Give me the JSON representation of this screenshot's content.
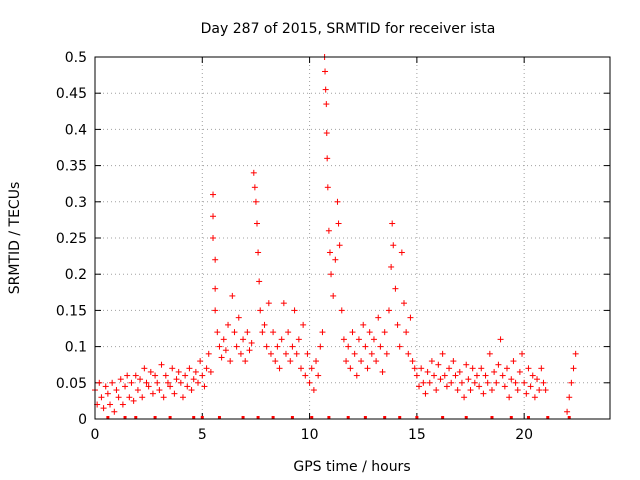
{
  "chart_data": {
    "type": "scatter",
    "title": "Day 287 of 2015, SRMTID for receiver ista",
    "xlabel": "GPS time / hours",
    "ylabel": "SRMTID / TECUs",
    "xlim": [
      0,
      24
    ],
    "ylim": [
      0,
      0.5
    ],
    "x_ticks": [
      "0",
      "5",
      "10",
      "15",
      "20"
    ],
    "y_ticks": [
      "0",
      "0.05",
      "0.1",
      "0.15",
      "0.2",
      "0.25",
      "0.3",
      "0.35",
      "0.4",
      "0.45",
      "0.5"
    ],
    "grid": true,
    "legend": "none",
    "marker": "plus",
    "series_color": "#ff0000",
    "series": [
      {
        "values": [
          [
            0.0,
            0.04
          ],
          [
            0.1,
            0.02
          ],
          [
            0.2,
            0.05
          ],
          [
            0.3,
            0.03
          ],
          [
            0.4,
            0.015
          ],
          [
            0.5,
            0.045
          ],
          [
            0.6,
            0.035
          ],
          [
            0.7,
            0.02
          ],
          [
            0.8,
            0.05
          ],
          [
            0.9,
            0.01
          ],
          [
            1.0,
            0.04
          ],
          [
            1.1,
            0.03
          ],
          [
            1.2,
            0.055
          ],
          [
            1.3,
            0.02
          ],
          [
            1.4,
            0.045
          ],
          [
            1.5,
            0.06
          ],
          [
            1.6,
            0.03
          ],
          [
            1.7,
            0.05
          ],
          [
            1.8,
            0.025
          ],
          [
            1.9,
            0.06
          ],
          [
            2.0,
            0.04
          ],
          [
            2.1,
            0.055
          ],
          [
            2.2,
            0.03
          ],
          [
            2.3,
            0.07
          ],
          [
            2.4,
            0.05
          ],
          [
            2.5,
            0.045
          ],
          [
            2.6,
            0.065
          ],
          [
            2.7,
            0.035
          ],
          [
            2.8,
            0.06
          ],
          [
            2.9,
            0.05
          ],
          [
            3.0,
            0.04
          ],
          [
            3.1,
            0.075
          ],
          [
            3.2,
            0.03
          ],
          [
            3.3,
            0.06
          ],
          [
            3.4,
            0.05
          ],
          [
            3.5,
            0.045
          ],
          [
            3.6,
            0.07
          ],
          [
            3.7,
            0.035
          ],
          [
            3.8,
            0.055
          ],
          [
            3.9,
            0.065
          ],
          [
            4.0,
            0.05
          ],
          [
            4.1,
            0.03
          ],
          [
            4.2,
            0.06
          ],
          [
            4.3,
            0.045
          ],
          [
            4.4,
            0.07
          ],
          [
            4.5,
            0.04
          ],
          [
            4.6,
            0.055
          ],
          [
            4.7,
            0.065
          ],
          [
            4.8,
            0.05
          ],
          [
            4.9,
            0.08
          ],
          [
            5.0,
            0.06
          ],
          [
            5.1,
            0.045
          ],
          [
            5.2,
            0.07
          ],
          [
            5.3,
            0.09
          ],
          [
            5.4,
            0.065
          ],
          [
            5.5,
            0.31
          ],
          [
            5.5,
            0.28
          ],
          [
            5.5,
            0.25
          ],
          [
            5.6,
            0.22
          ],
          [
            5.6,
            0.18
          ],
          [
            5.6,
            0.15
          ],
          [
            5.7,
            0.12
          ],
          [
            5.8,
            0.1
          ],
          [
            5.9,
            0.085
          ],
          [
            6.0,
            0.11
          ],
          [
            6.1,
            0.095
          ],
          [
            6.2,
            0.13
          ],
          [
            6.3,
            0.08
          ],
          [
            6.4,
            0.17
          ],
          [
            6.5,
            0.12
          ],
          [
            6.6,
            0.1
          ],
          [
            6.7,
            0.14
          ],
          [
            6.8,
            0.09
          ],
          [
            6.9,
            0.11
          ],
          [
            7.0,
            0.08
          ],
          [
            7.1,
            0.12
          ],
          [
            7.2,
            0.095
          ],
          [
            7.3,
            0.105
          ],
          [
            7.4,
            0.34
          ],
          [
            7.45,
            0.32
          ],
          [
            7.5,
            0.3
          ],
          [
            7.55,
            0.27
          ],
          [
            7.6,
            0.23
          ],
          [
            7.65,
            0.19
          ],
          [
            7.7,
            0.15
          ],
          [
            7.8,
            0.12
          ],
          [
            7.9,
            0.13
          ],
          [
            8.0,
            0.1
          ],
          [
            8.1,
            0.16
          ],
          [
            8.2,
            0.09
          ],
          [
            8.3,
            0.12
          ],
          [
            8.4,
            0.08
          ],
          [
            8.5,
            0.1
          ],
          [
            8.6,
            0.07
          ],
          [
            8.7,
            0.11
          ],
          [
            8.8,
            0.16
          ],
          [
            8.9,
            0.09
          ],
          [
            9.0,
            0.12
          ],
          [
            9.1,
            0.08
          ],
          [
            9.2,
            0.1
          ],
          [
            9.3,
            0.15
          ],
          [
            9.4,
            0.09
          ],
          [
            9.5,
            0.11
          ],
          [
            9.6,
            0.07
          ],
          [
            9.7,
            0.13
          ],
          [
            9.8,
            0.06
          ],
          [
            9.9,
            0.09
          ],
          [
            10.0,
            0.05
          ],
          [
            10.1,
            0.07
          ],
          [
            10.2,
            0.04
          ],
          [
            10.3,
            0.08
          ],
          [
            10.4,
            0.06
          ],
          [
            10.5,
            0.1
          ],
          [
            10.6,
            0.12
          ],
          [
            10.7,
            0.5
          ],
          [
            10.72,
            0.48
          ],
          [
            10.75,
            0.455
          ],
          [
            10.78,
            0.435
          ],
          [
            10.8,
            0.395
          ],
          [
            10.82,
            0.36
          ],
          [
            10.85,
            0.32
          ],
          [
            10.9,
            0.26
          ],
          [
            10.95,
            0.23
          ],
          [
            11.0,
            0.2
          ],
          [
            11.1,
            0.17
          ],
          [
            11.2,
            0.22
          ],
          [
            11.3,
            0.3
          ],
          [
            11.35,
            0.27
          ],
          [
            11.4,
            0.24
          ],
          [
            11.5,
            0.15
          ],
          [
            11.6,
            0.11
          ],
          [
            11.7,
            0.08
          ],
          [
            11.8,
            0.1
          ],
          [
            11.9,
            0.07
          ],
          [
            12.0,
            0.12
          ],
          [
            12.1,
            0.09
          ],
          [
            12.2,
            0.06
          ],
          [
            12.3,
            0.11
          ],
          [
            12.4,
            0.08
          ],
          [
            12.5,
            0.13
          ],
          [
            12.6,
            0.1
          ],
          [
            12.7,
            0.07
          ],
          [
            12.8,
            0.12
          ],
          [
            12.9,
            0.09
          ],
          [
            13.0,
            0.11
          ],
          [
            13.1,
            0.08
          ],
          [
            13.2,
            0.14
          ],
          [
            13.3,
            0.1
          ],
          [
            13.4,
            0.065
          ],
          [
            13.5,
            0.12
          ],
          [
            13.6,
            0.09
          ],
          [
            13.7,
            0.15
          ],
          [
            13.8,
            0.21
          ],
          [
            13.85,
            0.27
          ],
          [
            13.9,
            0.24
          ],
          [
            14.0,
            0.18
          ],
          [
            14.1,
            0.13
          ],
          [
            14.2,
            0.1
          ],
          [
            14.3,
            0.23
          ],
          [
            14.4,
            0.16
          ],
          [
            14.5,
            0.12
          ],
          [
            14.6,
            0.09
          ],
          [
            14.7,
            0.14
          ],
          [
            14.8,
            0.08
          ],
          [
            14.9,
            0.07
          ],
          [
            15.0,
            0.06
          ],
          [
            15.1,
            0.045
          ],
          [
            15.2,
            0.07
          ],
          [
            15.3,
            0.05
          ],
          [
            15.4,
            0.035
          ],
          [
            15.5,
            0.065
          ],
          [
            15.6,
            0.05
          ],
          [
            15.7,
            0.08
          ],
          [
            15.8,
            0.06
          ],
          [
            15.9,
            0.04
          ],
          [
            16.0,
            0.075
          ],
          [
            16.1,
            0.055
          ],
          [
            16.2,
            0.09
          ],
          [
            16.3,
            0.06
          ],
          [
            16.4,
            0.045
          ],
          [
            16.5,
            0.07
          ],
          [
            16.6,
            0.05
          ],
          [
            16.7,
            0.08
          ],
          [
            16.8,
            0.06
          ],
          [
            16.9,
            0.04
          ],
          [
            17.0,
            0.065
          ],
          [
            17.1,
            0.05
          ],
          [
            17.2,
            0.03
          ],
          [
            17.3,
            0.075
          ],
          [
            17.4,
            0.055
          ],
          [
            17.5,
            0.04
          ],
          [
            17.6,
            0.07
          ],
          [
            17.7,
            0.05
          ],
          [
            17.8,
            0.06
          ],
          [
            17.9,
            0.045
          ],
          [
            18.0,
            0.07
          ],
          [
            18.1,
            0.035
          ],
          [
            18.2,
            0.06
          ],
          [
            18.3,
            0.05
          ],
          [
            18.4,
            0.09
          ],
          [
            18.5,
            0.04
          ],
          [
            18.6,
            0.065
          ],
          [
            18.7,
            0.05
          ],
          [
            18.8,
            0.075
          ],
          [
            18.9,
            0.11
          ],
          [
            19.0,
            0.06
          ],
          [
            19.1,
            0.045
          ],
          [
            19.2,
            0.07
          ],
          [
            19.3,
            0.03
          ],
          [
            19.4,
            0.055
          ],
          [
            19.5,
            0.08
          ],
          [
            19.6,
            0.05
          ],
          [
            19.7,
            0.04
          ],
          [
            19.8,
            0.065
          ],
          [
            19.9,
            0.09
          ],
          [
            20.0,
            0.05
          ],
          [
            20.1,
            0.035
          ],
          [
            20.2,
            0.07
          ],
          [
            20.3,
            0.045
          ],
          [
            20.4,
            0.06
          ],
          [
            20.5,
            0.03
          ],
          [
            20.6,
            0.055
          ],
          [
            20.7,
            0.04
          ],
          [
            20.8,
            0.07
          ],
          [
            20.9,
            0.05
          ],
          [
            21.0,
            0.04
          ],
          [
            22.0,
            0.01
          ],
          [
            22.1,
            0.03
          ],
          [
            22.2,
            0.05
          ],
          [
            22.3,
            0.07
          ],
          [
            22.4,
            0.09
          ]
        ]
      }
    ]
  }
}
